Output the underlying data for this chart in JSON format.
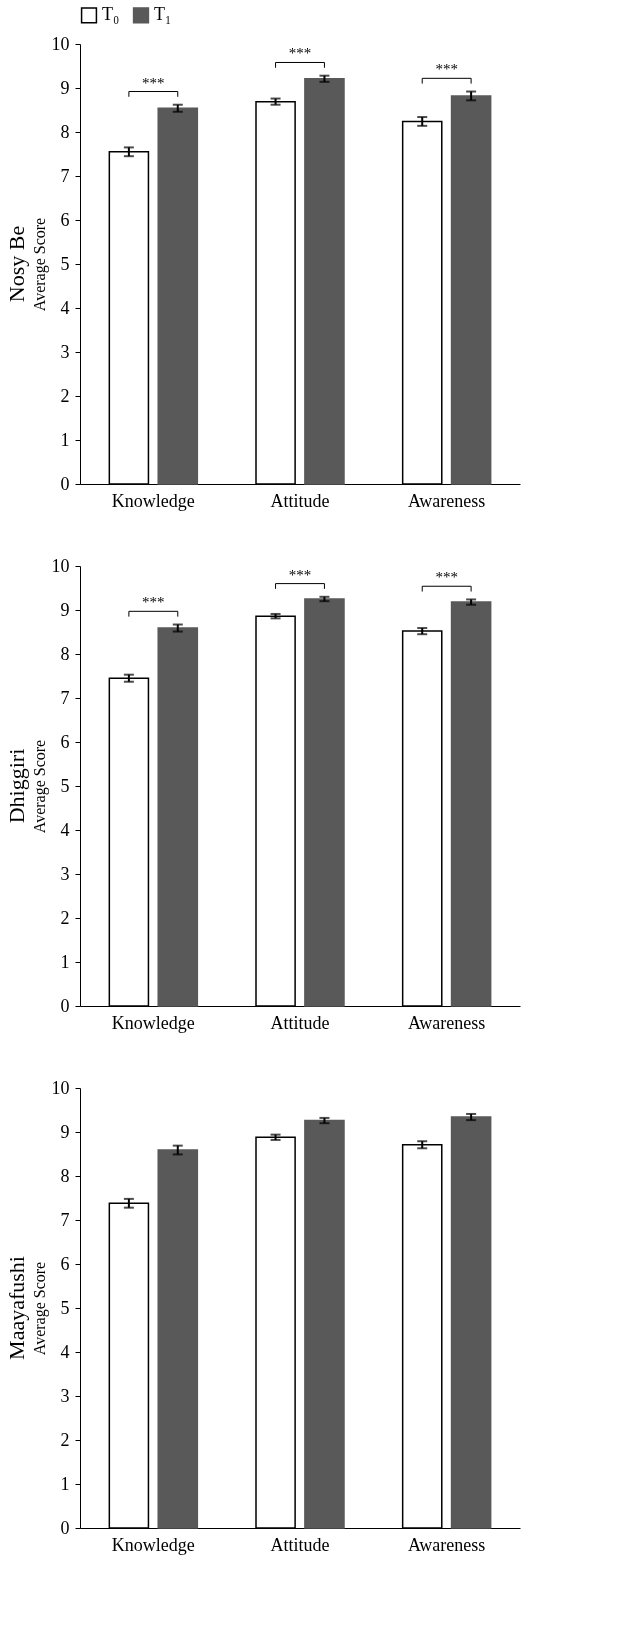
{
  "chart_data": [
    {
      "type": "bar",
      "title": "Nosy Be",
      "ylabel": "Average Score",
      "categories": [
        "Knowledge",
        "Attitude",
        "Awareness"
      ],
      "series": [
        {
          "name": "T₀",
          "color": "#ffffff",
          "values": [
            7.55,
            8.69,
            8.24
          ],
          "errors": [
            0.1,
            0.07,
            0.1
          ]
        },
        {
          "name": "T₁",
          "color": "#595959",
          "values": [
            8.54,
            9.21,
            8.82
          ],
          "errors": [
            0.08,
            0.07,
            0.1
          ]
        }
      ],
      "ylim": [
        0,
        10
      ],
      "yticks": [
        0,
        1,
        2,
        3,
        4,
        5,
        6,
        7,
        8,
        9,
        10
      ],
      "legend": "top",
      "grid": false,
      "annotations": [
        "***",
        "***",
        "***"
      ]
    },
    {
      "type": "bar",
      "title": "Dhiggiri",
      "ylabel": "Average Score",
      "categories": [
        "Knowledge",
        "Attitude",
        "Awareness"
      ],
      "series": [
        {
          "color": "#ffffff",
          "values": [
            7.45,
            8.86,
            8.52
          ],
          "errors": [
            0.08,
            0.05,
            0.07
          ]
        },
        {
          "color": "#595959",
          "values": [
            8.59,
            9.25,
            9.18
          ],
          "errors": [
            0.08,
            0.05,
            0.06
          ]
        }
      ],
      "ylim": [
        0,
        10
      ],
      "yticks": [
        0,
        1,
        2,
        3,
        4,
        5,
        6,
        7,
        8,
        9,
        10
      ],
      "grid": false,
      "annotations": [
        "***",
        "***",
        "***"
      ]
    },
    {
      "type": "bar",
      "title": "Maayafushi",
      "ylabel": "Average Score",
      "categories": [
        "Knowledge",
        "Attitude",
        "Awareness"
      ],
      "series": [
        {
          "color": "#ffffff",
          "values": [
            7.38,
            8.88,
            8.71
          ],
          "errors": [
            0.1,
            0.06,
            0.08
          ]
        },
        {
          "color": "#595959",
          "values": [
            8.59,
            9.26,
            9.34
          ],
          "errors": [
            0.1,
            0.06,
            0.07
          ]
        }
      ],
      "ylim": [
        0,
        10
      ],
      "yticks": [
        0,
        1,
        2,
        3,
        4,
        5,
        6,
        7,
        8,
        9,
        10
      ],
      "grid": false
    }
  ]
}
